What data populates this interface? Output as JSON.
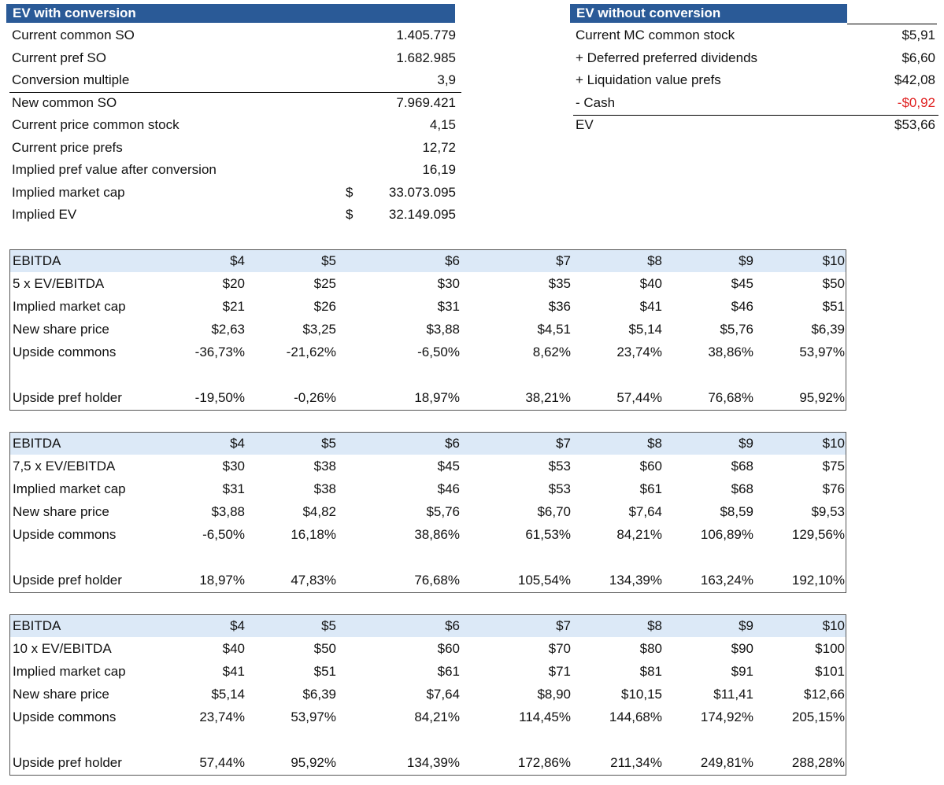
{
  "left_section": {
    "title": "EV with conversion",
    "rows": [
      {
        "label": "Current common SO",
        "currency": "",
        "value": "1.405.779"
      },
      {
        "label": "Current pref SO",
        "currency": "",
        "value": "1.682.985"
      },
      {
        "label": "Conversion multiple",
        "currency": "",
        "value": "3,9"
      },
      {
        "label": "New common SO",
        "currency": "",
        "value": "7.969.421"
      },
      {
        "label": "Current price common stock",
        "currency": "",
        "value": "4,15"
      },
      {
        "label": "Current price prefs",
        "currency": "",
        "value": "12,72"
      },
      {
        "label": "Implied pref value after conversion",
        "currency": "",
        "value": "16,19"
      },
      {
        "label": "Implied market cap",
        "currency": "$",
        "value": "33.073.095"
      },
      {
        "label": "Implied EV",
        "currency": "$",
        "value": "32.149.095"
      }
    ]
  },
  "right_section": {
    "title": "EV without conversion",
    "rows": [
      {
        "label": "Current MC common stock",
        "value": "$5,91"
      },
      {
        "label": "+ Deferred preferred dividends",
        "value": "$6,60"
      },
      {
        "label": "+ Liquidation value prefs",
        "value": "$42,08"
      },
      {
        "label": "- Cash",
        "value": "-$0,92"
      },
      {
        "label": "EV",
        "value": "$53,66"
      }
    ]
  },
  "tables": [
    {
      "rows": [
        {
          "label": "EBITDA",
          "cells": [
            "$4",
            "$5",
            "$6",
            "$7",
            "$8",
            "$9",
            "$10"
          ]
        },
        {
          "label": "5 x EV/EBITDA",
          "cells": [
            "$20",
            "$25",
            "$30",
            "$35",
            "$40",
            "$45",
            "$50"
          ]
        },
        {
          "label": "Implied market cap",
          "cells": [
            "$21",
            "$26",
            "$31",
            "$36",
            "$41",
            "$46",
            "$51"
          ]
        },
        {
          "label": "New share price",
          "cells": [
            "$2,63",
            "$3,25",
            "$3,88",
            "$4,51",
            "$5,14",
            "$5,76",
            "$6,39"
          ]
        },
        {
          "label": "Upside commons",
          "cells": [
            "-36,73%",
            "-21,62%",
            "-6,50%",
            "8,62%",
            "23,74%",
            "38,86%",
            "53,97%"
          ]
        },
        {
          "label": "",
          "cells": [
            "",
            "",
            "",
            "",
            "",
            "",
            ""
          ]
        },
        {
          "label": "Upside pref holder",
          "cells": [
            "-19,50%",
            "-0,26%",
            "18,97%",
            "38,21%",
            "57,44%",
            "76,68%",
            "95,92%"
          ]
        }
      ]
    },
    {
      "rows": [
        {
          "label": "EBITDA",
          "cells": [
            "$4",
            "$5",
            "$6",
            "$7",
            "$8",
            "$9",
            "$10"
          ]
        },
        {
          "label": "7,5 x EV/EBITDA",
          "cells": [
            "$30",
            "$38",
            "$45",
            "$53",
            "$60",
            "$68",
            "$75"
          ]
        },
        {
          "label": "Implied market cap",
          "cells": [
            "$31",
            "$38",
            "$46",
            "$53",
            "$61",
            "$68",
            "$76"
          ]
        },
        {
          "label": "New share price",
          "cells": [
            "$3,88",
            "$4,82",
            "$5,76",
            "$6,70",
            "$7,64",
            "$8,59",
            "$9,53"
          ]
        },
        {
          "label": "Upside commons",
          "cells": [
            "-6,50%",
            "16,18%",
            "38,86%",
            "61,53%",
            "84,21%",
            "106,89%",
            "129,56%"
          ]
        },
        {
          "label": "",
          "cells": [
            "",
            "",
            "",
            "",
            "",
            "",
            ""
          ]
        },
        {
          "label": "Upside pref holder",
          "cells": [
            "18,97%",
            "47,83%",
            "76,68%",
            "105,54%",
            "134,39%",
            "163,24%",
            "192,10%"
          ]
        }
      ]
    },
    {
      "rows": [
        {
          "label": "EBITDA",
          "cells": [
            "$4",
            "$5",
            "$6",
            "$7",
            "$8",
            "$9",
            "$10"
          ]
        },
        {
          "label": "10 x EV/EBITDA",
          "cells": [
            "$40",
            "$50",
            "$60",
            "$70",
            "$80",
            "$90",
            "$100"
          ]
        },
        {
          "label": "Implied market cap",
          "cells": [
            "$41",
            "$51",
            "$61",
            "$71",
            "$81",
            "$91",
            "$101"
          ]
        },
        {
          "label": "New share price",
          "cells": [
            "$5,14",
            "$6,39",
            "$7,64",
            "$8,90",
            "$10,15",
            "$11,41",
            "$12,66"
          ]
        },
        {
          "label": "Upside commons",
          "cells": [
            "23,74%",
            "53,97%",
            "84,21%",
            "114,45%",
            "144,68%",
            "174,92%",
            "205,15%"
          ]
        },
        {
          "label": "",
          "cells": [
            "",
            "",
            "",
            "",
            "",
            "",
            ""
          ]
        },
        {
          "label": "Upside pref holder",
          "cells": [
            "57,44%",
            "95,92%",
            "134,39%",
            "172,86%",
            "211,34%",
            "249,81%",
            "288,28%"
          ]
        }
      ]
    }
  ],
  "colors": {
    "header_bg": "#2a5a97",
    "table_header_bg": "#dce9f7",
    "negative": "#e02020"
  }
}
